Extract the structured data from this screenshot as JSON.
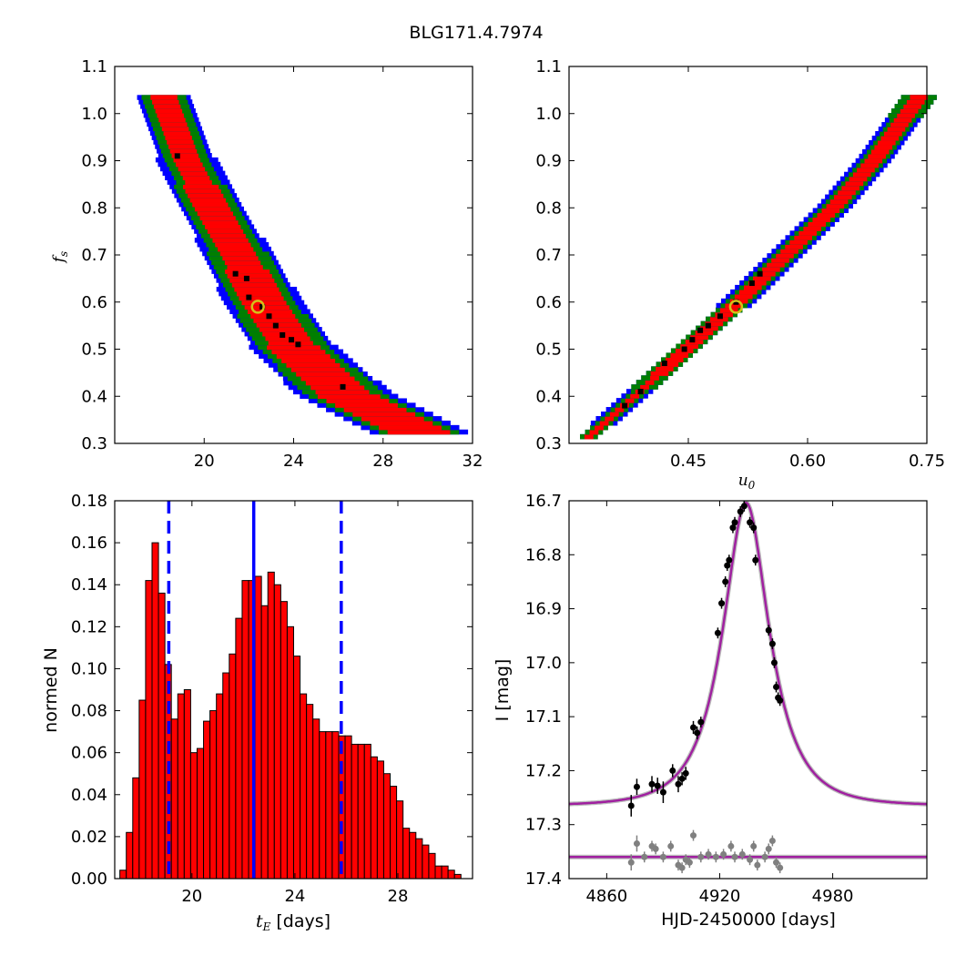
{
  "figure": {
    "title": "BLG171.4.7974"
  },
  "chart_data": [
    {
      "id": "tE-fs",
      "type": "heatmap",
      "title": "",
      "xlabel": "",
      "ylabel": "f_s",
      "xlim": [
        16,
        32
      ],
      "ylim": [
        0.3,
        1.1
      ],
      "xticks": [
        "20",
        "24",
        "28",
        "32"
      ],
      "yticks": [
        "0.3",
        "0.4",
        "0.5",
        "0.6",
        "0.7",
        "0.8",
        "0.9",
        "1.0",
        "1.1"
      ],
      "colors": {
        "sigma1": "#ff0000",
        "sigma2": "#007f00",
        "sigma3": "#0000ff",
        "best": "#000000",
        "marker": "#d4c21a"
      },
      "band": [
        {
          "fs": 1.03,
          "center": 18.2,
          "w1": 0.5,
          "w2": 0.9,
          "w3": 1.1
        },
        {
          "fs": 0.9,
          "center": 19.2,
          "w1": 0.65,
          "w2": 1.05,
          "w3": 1.3
        },
        {
          "fs": 0.8,
          "center": 20.3,
          "w1": 0.75,
          "w2": 1.15,
          "w3": 1.4
        },
        {
          "fs": 0.7,
          "center": 21.5,
          "w1": 0.85,
          "w2": 1.3,
          "w3": 1.55
        },
        {
          "fs": 0.6,
          "center": 22.6,
          "w1": 1.0,
          "w2": 1.45,
          "w3": 1.75
        },
        {
          "fs": 0.5,
          "center": 24.0,
          "w1": 1.1,
          "w2": 1.6,
          "w3": 1.9
        },
        {
          "fs": 0.4,
          "center": 26.3,
          "w1": 1.3,
          "w2": 1.85,
          "w3": 2.2
        },
        {
          "fs": 0.32,
          "center": 29.6,
          "w1": 1.4,
          "w2": 1.9,
          "w3": 2.3
        }
      ],
      "best_points": [
        [
          18.8,
          0.91
        ],
        [
          21.4,
          0.66
        ],
        [
          21.9,
          0.65
        ],
        [
          22.0,
          0.61
        ],
        [
          22.6,
          0.59
        ],
        [
          22.9,
          0.57
        ],
        [
          23.2,
          0.55
        ],
        [
          23.5,
          0.53
        ],
        [
          23.9,
          0.52
        ],
        [
          24.2,
          0.51
        ],
        [
          26.2,
          0.42
        ]
      ],
      "marker": [
        22.4,
        0.59
      ]
    },
    {
      "id": "u0-fs",
      "type": "heatmap",
      "title": "",
      "xlabel": "u_0",
      "ylabel": "",
      "xlim": [
        0.3,
        0.75
      ],
      "ylim": [
        0.3,
        1.1
      ],
      "xticks": [
        "0.45",
        "0.60",
        "0.75"
      ],
      "yticks": [
        "0.3",
        "0.4",
        "0.5",
        "0.6",
        "0.7",
        "0.8",
        "0.9",
        "1.0",
        "1.1"
      ],
      "colors": {
        "sigma1": "#ff0000",
        "sigma2": "#007f00",
        "sigma3": "#0000ff",
        "best": "#000000",
        "marker": "#d4c21a"
      },
      "band": [
        {
          "fs": 0.31,
          "center": 0.325,
          "w1": 0.005,
          "w2": 0.01,
          "w3": 0.013
        },
        {
          "fs": 0.4,
          "center": 0.385,
          "w1": 0.008,
          "w2": 0.014,
          "w3": 0.017
        },
        {
          "fs": 0.5,
          "center": 0.45,
          "w1": 0.009,
          "w2": 0.015,
          "w3": 0.018
        },
        {
          "fs": 0.6,
          "center": 0.515,
          "w1": 0.01,
          "w2": 0.016,
          "w3": 0.02
        },
        {
          "fs": 0.7,
          "center": 0.575,
          "w1": 0.01,
          "w2": 0.017,
          "w3": 0.021
        },
        {
          "fs": 0.8,
          "center": 0.635,
          "w1": 0.011,
          "w2": 0.018,
          "w3": 0.022
        },
        {
          "fs": 0.9,
          "center": 0.685,
          "w1": 0.012,
          "w2": 0.019,
          "w3": 0.023
        },
        {
          "fs": 1.03,
          "center": 0.74,
          "w1": 0.012,
          "w2": 0.02,
          "w3": 0.025
        }
      ],
      "best_points": [
        [
          0.37,
          0.38
        ],
        [
          0.39,
          0.41
        ],
        [
          0.42,
          0.47
        ],
        [
          0.445,
          0.5
        ],
        [
          0.455,
          0.52
        ],
        [
          0.465,
          0.54
        ],
        [
          0.475,
          0.55
        ],
        [
          0.49,
          0.57
        ],
        [
          0.51,
          0.6
        ],
        [
          0.53,
          0.64
        ],
        [
          0.54,
          0.66
        ]
      ],
      "marker": [
        0.51,
        0.59
      ]
    },
    {
      "id": "tE-hist",
      "type": "bar",
      "title": "",
      "xlabel": "t_E [days]",
      "ylabel": "normed N",
      "xlim": [
        17,
        30.9
      ],
      "ylim": [
        0,
        0.18
      ],
      "xticks": [
        "20",
        "24",
        "28"
      ],
      "yticks": [
        "0.00",
        "0.02",
        "0.04",
        "0.06",
        "0.08",
        "0.10",
        "0.12",
        "0.14",
        "0.16",
        "0.18"
      ],
      "bin_start": 17.2,
      "bin_width": 0.25,
      "values": [
        0.004,
        0.022,
        0.048,
        0.085,
        0.142,
        0.16,
        0.136,
        0.102,
        0.076,
        0.088,
        0.09,
        0.06,
        0.062,
        0.075,
        0.08,
        0.088,
        0.098,
        0.107,
        0.124,
        0.142,
        0.142,
        0.144,
        0.13,
        0.146,
        0.14,
        0.132,
        0.12,
        0.106,
        0.088,
        0.083,
        0.076,
        0.07,
        0.07,
        0.07,
        0.068,
        0.068,
        0.064,
        0.064,
        0.064,
        0.058,
        0.056,
        0.05,
        0.044,
        0.037,
        0.024,
        0.022,
        0.019,
        0.016,
        0.012,
        0.006,
        0.006,
        0.004,
        0.002
      ],
      "bar_color": "#ff0000",
      "lines": [
        {
          "x": 22.4,
          "style": "solid",
          "color": "#0000ff"
        },
        {
          "x": 19.1,
          "style": "dashed",
          "color": "#0000ff"
        },
        {
          "x": 25.8,
          "style": "dashed",
          "color": "#0000ff"
        }
      ]
    },
    {
      "id": "lightcurve",
      "type": "scatter",
      "title": "",
      "xlabel": "HJD-2450000 [days]",
      "ylabel": "I [mag]",
      "xlim": [
        4840,
        5030
      ],
      "ylim": [
        17.4,
        16.7
      ],
      "xticks": [
        "4860",
        "4920",
        "4980"
      ],
      "yticks": [
        "16.7",
        "16.8",
        "16.9",
        "17.0",
        "17.1",
        "17.2",
        "17.3",
        "17.4"
      ],
      "model": {
        "t0": 4934,
        "tE": 22.4,
        "u0": 0.51,
        "fs": 0.59,
        "Ibase": 17.265,
        "color": "#a020a0"
      },
      "residual_baseline": 17.36,
      "points": [
        [
          4873,
          17.265,
          0.02
        ],
        [
          4876,
          17.23,
          0.015
        ],
        [
          4884,
          17.225,
          0.015
        ],
        [
          4887,
          17.228,
          0.015
        ],
        [
          4890,
          17.24,
          0.02
        ],
        [
          4895,
          17.2,
          0.012
        ],
        [
          4898,
          17.225,
          0.015
        ],
        [
          4900,
          17.215,
          0.012
        ],
        [
          4902,
          17.205,
          0.012
        ],
        [
          4906,
          17.12,
          0.012
        ],
        [
          4908,
          17.13,
          0.012
        ],
        [
          4910,
          17.11,
          0.01
        ],
        [
          4919,
          16.945,
          0.01
        ],
        [
          4921,
          16.89,
          0.01
        ],
        [
          4923,
          16.85,
          0.01
        ],
        [
          4924,
          16.82,
          0.01
        ],
        [
          4925,
          16.81,
          0.01
        ],
        [
          4927,
          16.75,
          0.01
        ],
        [
          4928,
          16.74,
          0.01
        ],
        [
          4931,
          16.72,
          0.01
        ],
        [
          4933,
          16.71,
          0.01
        ],
        [
          4936,
          16.74,
          0.01
        ],
        [
          4938,
          16.75,
          0.01
        ],
        [
          4939,
          16.81,
          0.01
        ],
        [
          4946,
          16.94,
          0.01
        ],
        [
          4948,
          16.965,
          0.01
        ],
        [
          4949,
          17.0,
          0.01
        ],
        [
          4950,
          17.045,
          0.01
        ],
        [
          4951,
          17.065,
          0.01
        ],
        [
          4952,
          17.07,
          0.01
        ]
      ],
      "residuals": [
        [
          4873,
          17.37,
          0.015
        ],
        [
          4876,
          17.335,
          0.015
        ],
        [
          4880,
          17.36,
          0.01
        ],
        [
          4884,
          17.34,
          0.01
        ],
        [
          4886,
          17.345,
          0.01
        ],
        [
          4890,
          17.36,
          0.01
        ],
        [
          4894,
          17.34,
          0.01
        ],
        [
          4898,
          17.375,
          0.01
        ],
        [
          4900,
          17.38,
          0.01
        ],
        [
          4902,
          17.365,
          0.01
        ],
        [
          4904,
          17.37,
          0.01
        ],
        [
          4906,
          17.32,
          0.01
        ],
        [
          4910,
          17.36,
          0.01
        ],
        [
          4914,
          17.355,
          0.01
        ],
        [
          4918,
          17.36,
          0.01
        ],
        [
          4922,
          17.355,
          0.01
        ],
        [
          4926,
          17.34,
          0.01
        ],
        [
          4928,
          17.36,
          0.01
        ],
        [
          4932,
          17.355,
          0.01
        ],
        [
          4936,
          17.365,
          0.01
        ],
        [
          4938,
          17.34,
          0.01
        ],
        [
          4940,
          17.375,
          0.01
        ],
        [
          4944,
          17.36,
          0.01
        ],
        [
          4946,
          17.345,
          0.01
        ],
        [
          4948,
          17.33,
          0.01
        ],
        [
          4950,
          17.37,
          0.01
        ],
        [
          4952,
          17.38,
          0.01
        ]
      ]
    }
  ]
}
